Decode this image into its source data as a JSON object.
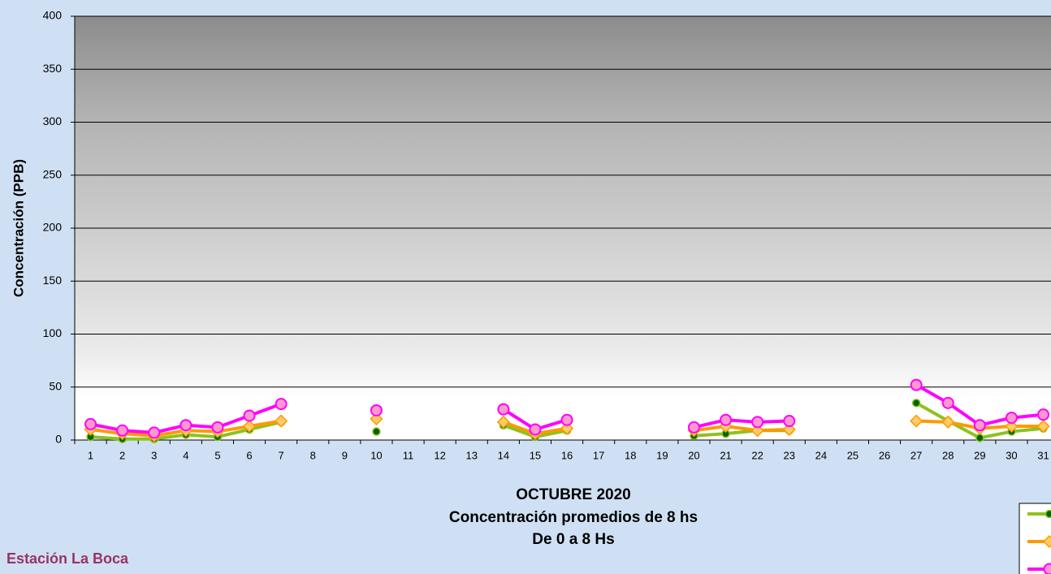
{
  "chart_data": {
    "type": "line",
    "title_lines": [
      "OCTUBRE 2020",
      "Concentración promedios de 8 hs",
      "De 0 a 8 Hs"
    ],
    "y_label": "Concentración  (PPB)",
    "station": "Estación La Boca",
    "categories": [
      "1",
      "2",
      "3",
      "4",
      "5",
      "6",
      "7",
      "8",
      "9",
      "10",
      "11",
      "12",
      "13",
      "14",
      "15",
      "16",
      "17",
      "18",
      "19",
      "20",
      "21",
      "22",
      "23",
      "24",
      "25",
      "26",
      "27",
      "28",
      "29",
      "30",
      "31"
    ],
    "series": [
      {
        "color": "#8dc21f",
        "values": [
          3,
          1,
          1,
          5,
          3,
          10,
          17,
          null,
          null,
          8,
          null,
          null,
          null,
          14,
          3,
          9,
          null,
          null,
          null,
          4,
          6,
          9,
          9,
          null,
          null,
          null,
          35,
          18,
          2,
          8,
          11
        ]
      },
      {
        "color": "#ff9900",
        "values": [
          10,
          6,
          4,
          9,
          8,
          13,
          18,
          null,
          null,
          20,
          null,
          null,
          null,
          17,
          6,
          11,
          null,
          null,
          null,
          9,
          13,
          9,
          10,
          null,
          null,
          null,
          18,
          17,
          11,
          13,
          13
        ]
      },
      {
        "color": "#ff00ff",
        "values": [
          15,
          9,
          7,
          14,
          12,
          23,
          34,
          null,
          null,
          28,
          null,
          null,
          null,
          29,
          10,
          19,
          null,
          null,
          null,
          12,
          19,
          17,
          18,
          null,
          null,
          null,
          52,
          35,
          14,
          21,
          24
        ]
      }
    ],
    "ylim": [
      0,
      400
    ],
    "yticks": [
      0,
      50,
      100,
      150,
      200,
      250,
      300,
      350,
      400
    ],
    "grid": true
  }
}
